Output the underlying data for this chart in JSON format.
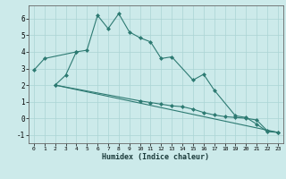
{
  "xlabel": "Humidex (Indice chaleur)",
  "x": [
    0,
    1,
    2,
    3,
    4,
    5,
    6,
    7,
    8,
    9,
    10,
    11,
    12,
    13,
    14,
    15,
    16,
    17,
    18,
    19,
    20,
    21,
    22,
    23
  ],
  "line1": [
    2.9,
    3.6,
    null,
    null,
    4.0,
    4.1,
    6.2,
    5.4,
    6.3,
    5.2,
    4.85,
    4.6,
    3.6,
    3.7,
    null,
    2.3,
    2.65,
    1.7,
    null,
    0.15,
    0.05,
    -0.35,
    -0.8,
    -0.85
  ],
  "line2": [
    null,
    null,
    2.0,
    2.6,
    4.0,
    null,
    null,
    null,
    null,
    null,
    null,
    null,
    null,
    null,
    null,
    null,
    null,
    null,
    null,
    null,
    null,
    null,
    null,
    null
  ],
  "line3": [
    null,
    null,
    2.0,
    null,
    null,
    null,
    null,
    null,
    null,
    null,
    1.05,
    0.95,
    0.85,
    0.75,
    0.7,
    0.55,
    0.35,
    0.2,
    0.1,
    0.05,
    0.0,
    -0.1,
    -0.75,
    -0.85
  ],
  "line4_x": [
    2,
    23
  ],
  "line4_y": [
    2.0,
    -0.85
  ],
  "color": "#2d7a72",
  "background": "#cceaea",
  "grid_color": "#aad4d4",
  "ylim": [
    -1.5,
    6.8
  ],
  "xlim": [
    -0.5,
    23.5
  ],
  "yticks": [
    -1,
    0,
    1,
    2,
    3,
    4,
    5,
    6
  ],
  "xticks": [
    0,
    1,
    2,
    3,
    4,
    5,
    6,
    7,
    8,
    9,
    10,
    11,
    12,
    13,
    14,
    15,
    16,
    17,
    18,
    19,
    20,
    21,
    22,
    23
  ]
}
